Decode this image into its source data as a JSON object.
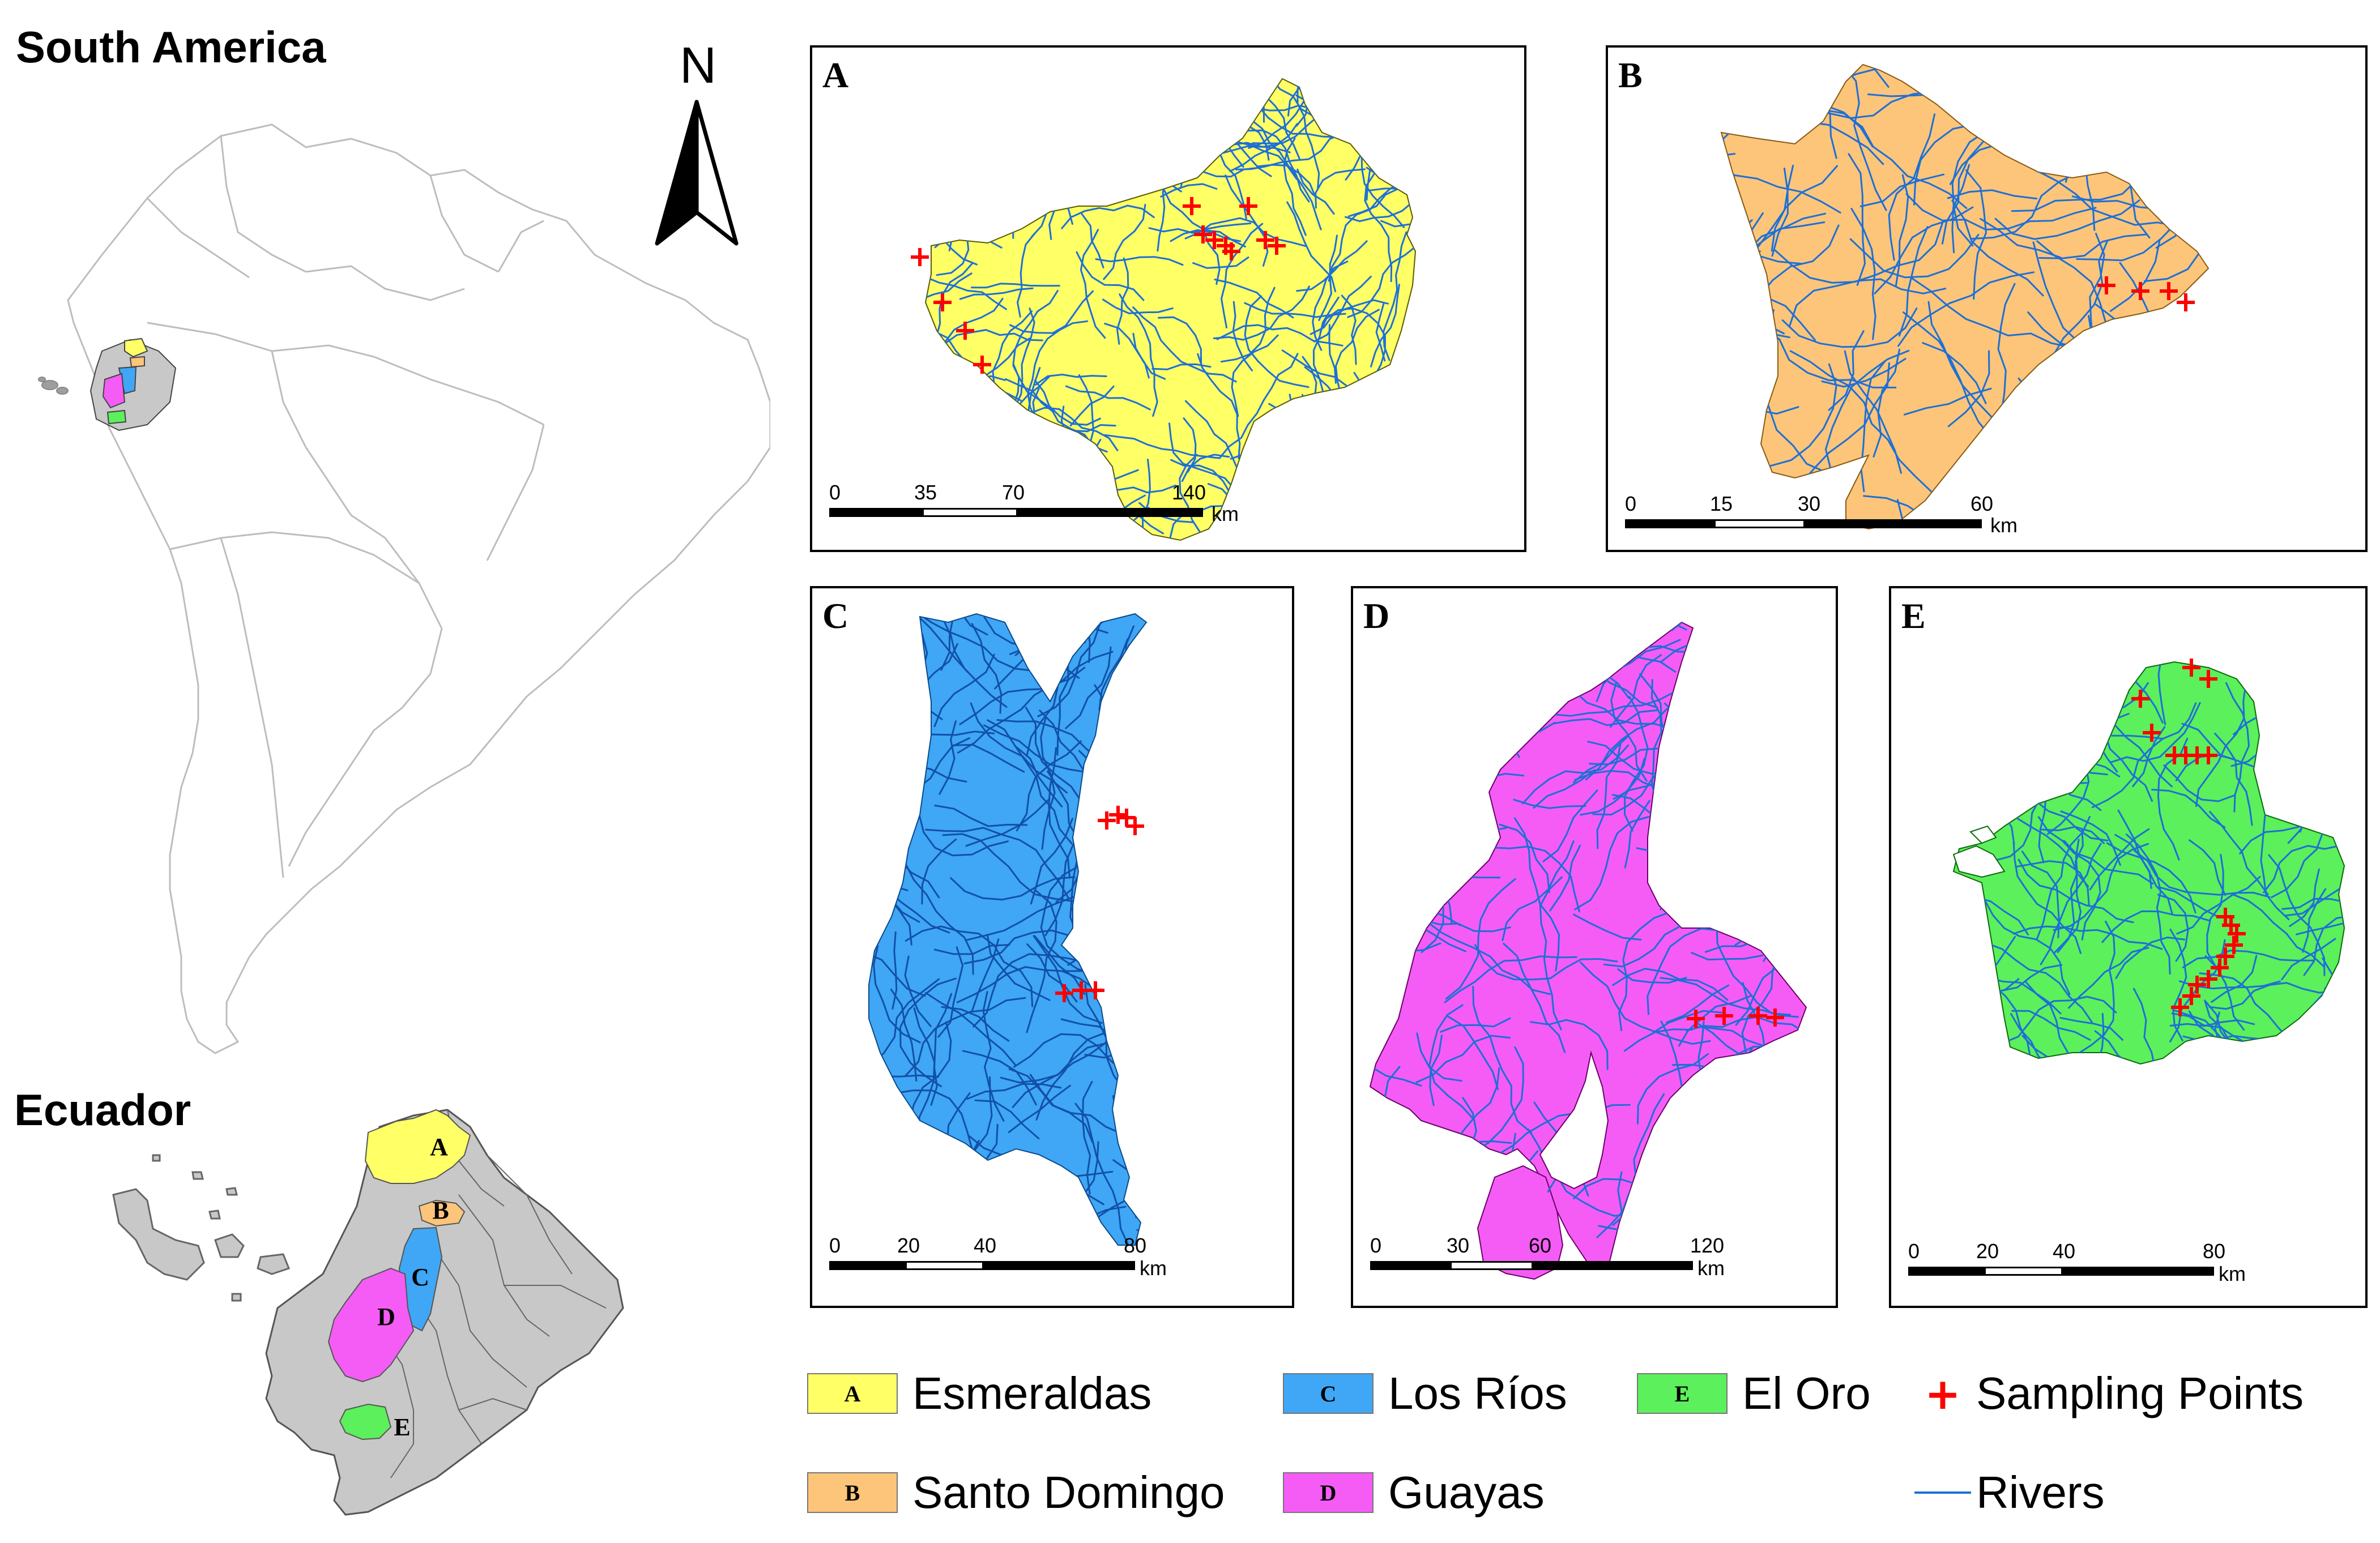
{
  "inset": {
    "south_america_title": "South America",
    "ecuador_title": "Ecuador",
    "north_label": "N",
    "province_labels": [
      "A",
      "B",
      "C",
      "D",
      "E"
    ]
  },
  "panels": [
    {
      "letter": "A",
      "color": "#ffff66",
      "scale_ticks": [
        "0",
        "35",
        "70",
        "140"
      ],
      "unit": "km"
    },
    {
      "letter": "B",
      "color": "#fcc57a",
      "scale_ticks": [
        "0",
        "15",
        "30",
        "60"
      ],
      "unit": "km"
    },
    {
      "letter": "C",
      "color": "#3fa7f5",
      "scale_ticks": [
        "0",
        "20",
        "40",
        "80"
      ],
      "unit": "km"
    },
    {
      "letter": "D",
      "color": "#f55cf5",
      "scale_ticks": [
        "0",
        "30",
        "60",
        "120"
      ],
      "unit": "km"
    },
    {
      "letter": "E",
      "color": "#5cf05c",
      "scale_ticks": [
        "0",
        "20",
        "40",
        "80"
      ],
      "unit": "km"
    }
  ],
  "legend": {
    "provinces": [
      {
        "code": "A",
        "name": "Esmeraldas",
        "color": "#ffff66"
      },
      {
        "code": "B",
        "name": "Santo Domingo",
        "color": "#fcc57a"
      },
      {
        "code": "C",
        "name": "Los Ríos",
        "color": "#3fa7f5"
      },
      {
        "code": "D",
        "name": "Guayas",
        "color": "#f55cf5"
      },
      {
        "code": "E",
        "name": "El Oro",
        "color": "#5cf05c"
      }
    ],
    "sampling_points": {
      "label": "Sampling Points",
      "symbol": "+",
      "color": "#ff0000"
    },
    "rivers": {
      "label": "Rivers",
      "color": "#1e6fd6"
    }
  },
  "colors": {
    "river": "#1e6fd6",
    "sample": "#ff0000",
    "country_fill": "#c8c8c8",
    "outline": "#bdbdbd"
  }
}
